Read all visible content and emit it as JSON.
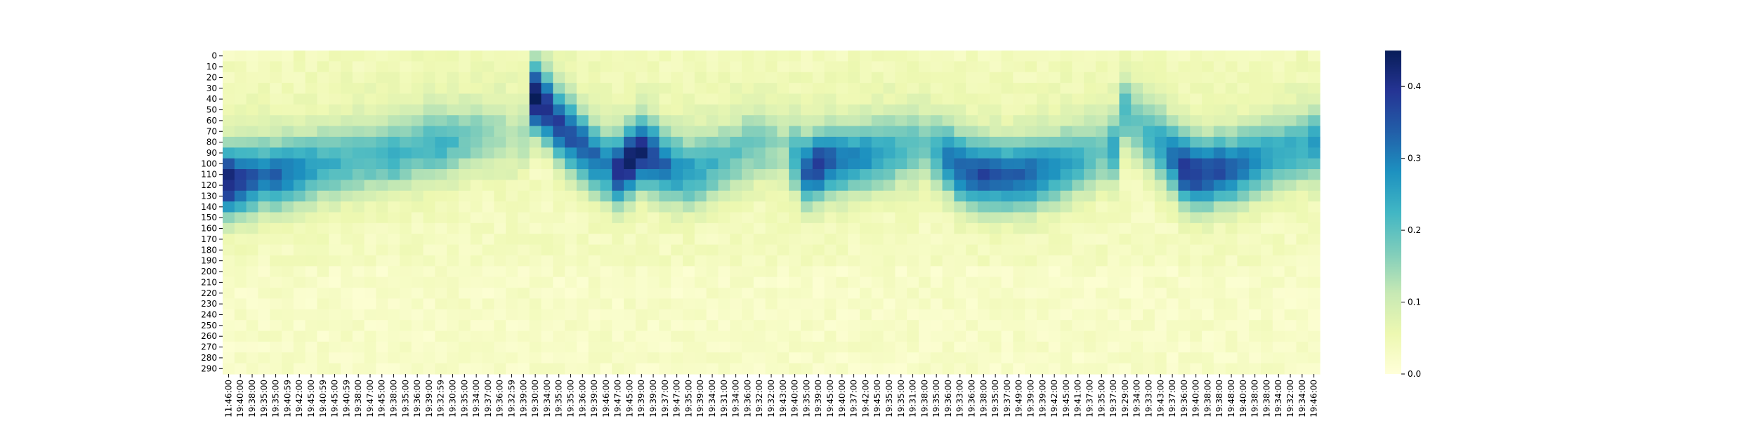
{
  "chart_data": {
    "type": "heatmap",
    "title": "",
    "xlabel": "",
    "ylabel": "",
    "colormap": "YlGnBu",
    "colormap_stops": [
      "#ffffd9",
      "#edf8b1",
      "#c7e9b4",
      "#7fcdbb",
      "#41b6c4",
      "#1d91c0",
      "#225ea8",
      "#253494",
      "#081d58"
    ],
    "value_range": [
      0.0,
      0.45
    ],
    "y_tick_labels": [
      "0",
      "10",
      "20",
      "30",
      "40",
      "50",
      "60",
      "70",
      "80",
      "90",
      "100",
      "110",
      "120",
      "130",
      "140",
      "150",
      "160",
      "170",
      "180",
      "190",
      "200",
      "210",
      "220",
      "230",
      "240",
      "250",
      "260",
      "270",
      "280",
      "290"
    ],
    "x_tick_labels": [
      "11:46:00",
      "19:40:00",
      "19:38:00",
      "19:35:00",
      "19:35:00",
      "19:40:59",
      "19:42:00",
      "19:45:00",
      "19:40:59",
      "19:45:00",
      "19:40:59",
      "19:38:00",
      "19:47:00",
      "19:45:00",
      "19:38:00",
      "19:35:00",
      "19:36:00",
      "19:39:00",
      "19:32:59",
      "19:30:00",
      "19:35:00",
      "19:34:00",
      "19:37:00",
      "19:36:00",
      "19:32:59",
      "19:39:00",
      "19:30:00",
      "19:34:00",
      "19:35:00",
      "19:35:00",
      "19:36:00",
      "19:39:00",
      "19:46:00",
      "19:47:00",
      "19:45:00",
      "19:39:00",
      "19:39:00",
      "19:37:00",
      "19:47:00",
      "19:35:00",
      "19:39:00",
      "19:34:00",
      "19:31:00",
      "19:34:00",
      "19:36:00",
      "19:32:00",
      "19:32:00",
      "19:43:00",
      "19:40:00",
      "19:35:00",
      "19:39:00",
      "19:45:00",
      "19:40:00",
      "19:37:00",
      "19:42:00",
      "19:45:00",
      "19:35:00",
      "19:35:00",
      "19:31:00",
      "19:38:00",
      "19:35:00",
      "19:36:00",
      "19:33:00",
      "19:36:00",
      "19:38:00",
      "19:35:00",
      "19:37:00",
      "19:49:00",
      "19:39:00",
      "19:39:00",
      "19:42:00",
      "19:45:00",
      "19:41:00",
      "19:37:00",
      "19:35:00",
      "19:37:00",
      "19:29:00",
      "19:34:00",
      "19:33:00",
      "19:43:00",
      "19:37:00",
      "19:36:00",
      "19:40:00",
      "19:38:00",
      "19:38:00",
      "19:48:00",
      "19:40:00",
      "19:38:00",
      "19:38:00",
      "19:34:00",
      "19:32:00",
      "19:34:00",
      "19:46:00"
    ],
    "colorbar_ticks": [
      "0.0",
      "0.1",
      "0.2",
      "0.3",
      "0.4"
    ],
    "colorbar_tick_values": [
      0.0,
      0.1,
      0.2,
      0.3,
      0.4
    ],
    "n_rows": 30,
    "n_cols": 93,
    "band_centers": [
      122,
      121,
      119,
      117,
      117,
      115,
      112,
      110,
      108,
      106,
      104,
      103,
      101,
      100,
      98,
      96,
      93,
      90,
      88,
      87,
      84,
      82,
      82,
      83,
      84,
      80,
      45,
      55,
      70,
      80,
      90,
      100,
      108,
      112,
      104,
      96,
      100,
      108,
      112,
      114,
      112,
      108,
      104,
      98,
      92,
      90,
      92,
      95,
      100,
      112,
      108,
      104,
      103,
      101,
      100,
      98,
      96,
      94,
      92,
      90,
      95,
      102,
      110,
      114,
      116,
      117,
      118,
      117,
      115,
      112,
      110,
      107,
      104,
      100,
      95,
      92,
      60,
      70,
      80,
      90,
      100,
      110,
      115,
      114,
      112,
      112,
      108,
      104,
      100,
      97,
      95,
      92,
      90
    ],
    "band_intensities": [
      0.38,
      0.34,
      0.3,
      0.27,
      0.29,
      0.26,
      0.24,
      0.22,
      0.2,
      0.19,
      0.18,
      0.17,
      0.18,
      0.19,
      0.2,
      0.18,
      0.17,
      0.18,
      0.19,
      0.17,
      0.15,
      0.13,
      0.12,
      0.1,
      0.09,
      0.1,
      0.42,
      0.36,
      0.34,
      0.32,
      0.3,
      0.28,
      0.26,
      0.36,
      0.4,
      0.38,
      0.33,
      0.28,
      0.24,
      0.22,
      0.2,
      0.18,
      0.16,
      0.15,
      0.15,
      0.14,
      0.12,
      0.1,
      0.2,
      0.3,
      0.34,
      0.3,
      0.27,
      0.25,
      0.24,
      0.22,
      0.2,
      0.18,
      0.16,
      0.14,
      0.2,
      0.26,
      0.3,
      0.31,
      0.32,
      0.3,
      0.29,
      0.3,
      0.29,
      0.26,
      0.24,
      0.22,
      0.2,
      0.17,
      0.15,
      0.2,
      0.18,
      0.16,
      0.18,
      0.22,
      0.28,
      0.36,
      0.34,
      0.33,
      0.32,
      0.3,
      0.27,
      0.24,
      0.22,
      0.2,
      0.2,
      0.2,
      0.22
    ],
    "background_level": 0.035
  }
}
